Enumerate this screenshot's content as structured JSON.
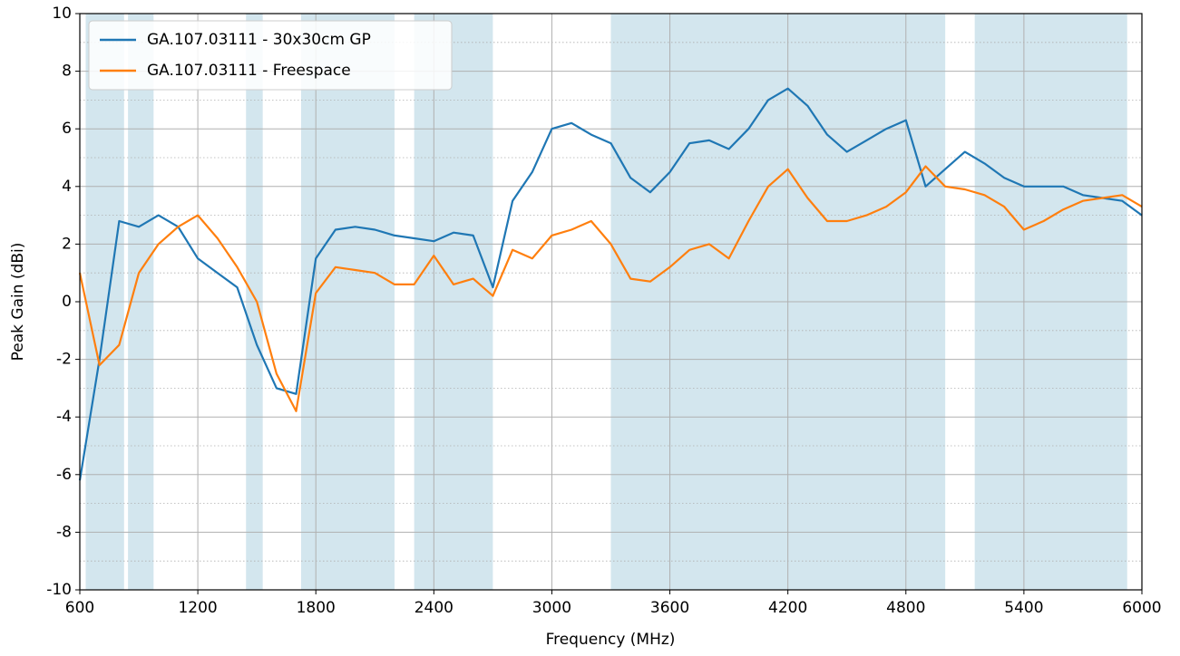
{
  "chart_data": {
    "type": "line",
    "xlabel": "Frequency (MHz)",
    "ylabel": "Peak Gain (dBi)",
    "x": [
      600,
      700,
      800,
      900,
      1000,
      1100,
      1200,
      1300,
      1400,
      1500,
      1600,
      1700,
      1800,
      1900,
      2000,
      2100,
      2200,
      2300,
      2400,
      2500,
      2600,
      2700,
      2800,
      2900,
      3000,
      3100,
      3200,
      3300,
      3400,
      3500,
      3600,
      3700,
      3800,
      3900,
      4000,
      4100,
      4200,
      4300,
      4400,
      4500,
      4600,
      4700,
      4800,
      4900,
      5000,
      5100,
      5200,
      5300,
      5400,
      5500,
      5600,
      5700,
      5800,
      5900,
      6000
    ],
    "series": [
      {
        "name": "GA.107.03111 - 30x30cm GP",
        "color": "#1f77b4",
        "values": [
          -6.2,
          -2,
          2.8,
          2.6,
          3.0,
          2.6,
          1.5,
          1.0,
          0.5,
          -1.5,
          -3,
          -3.2,
          1.5,
          2.5,
          2.6,
          2.5,
          2.3,
          2.2,
          2.1,
          2.4,
          2.3,
          0.5,
          3.5,
          4.5,
          6.0,
          6.2,
          5.8,
          5.5,
          4.3,
          3.8,
          4.5,
          5.5,
          5.6,
          5.3,
          6.0,
          7.0,
          7.4,
          6.8,
          5.8,
          5.2,
          5.6,
          6.0,
          6.3,
          4.0,
          4.6,
          5.2,
          4.8,
          4.3,
          4.0,
          4.0,
          4.0,
          3.7,
          3.6,
          3.5,
          3.0
        ]
      },
      {
        "name": "GA.107.03111 - Freespace",
        "color": "#ff7f0e",
        "values": [
          1.0,
          -2.2,
          -1.5,
          1.0,
          2.0,
          2.6,
          3.0,
          2.2,
          1.2,
          0.0,
          -2.5,
          -3.8,
          0.3,
          1.2,
          1.1,
          1.0,
          0.6,
          0.6,
          1.6,
          0.6,
          0.8,
          0.2,
          1.8,
          1.5,
          2.3,
          2.5,
          2.8,
          2.0,
          0.8,
          0.7,
          1.2,
          1.8,
          2.0,
          1.5,
          2.8,
          4.0,
          4.6,
          3.6,
          2.8,
          2.8,
          3.0,
          3.3,
          3.8,
          4.7,
          4.0,
          3.9,
          3.7,
          3.3,
          2.5,
          2.8,
          3.2,
          3.5,
          3.6,
          3.7,
          3.3
        ]
      }
    ],
    "bands": [
      [
        630,
        825
      ],
      [
        845,
        975
      ],
      [
        1445,
        1530
      ],
      [
        1725,
        2200
      ],
      [
        2300,
        2700
      ],
      [
        3300,
        5000
      ],
      [
        5150,
        5925
      ]
    ],
    "band_color": "#d3e6ee",
    "xlim": [
      600,
      6000
    ],
    "xticks": [
      600,
      1200,
      1800,
      2400,
      3000,
      3600,
      4200,
      4800,
      5400,
      6000
    ],
    "ylim": [
      -10,
      10
    ],
    "yticks": [
      -10,
      -8,
      -6,
      -4,
      -2,
      0,
      2,
      4,
      6,
      8,
      10
    ],
    "yminorticks": [
      -9,
      -7,
      -5,
      -3,
      -1,
      1,
      3,
      5,
      7,
      9
    ],
    "grid": true,
    "legend": "upper-left"
  }
}
